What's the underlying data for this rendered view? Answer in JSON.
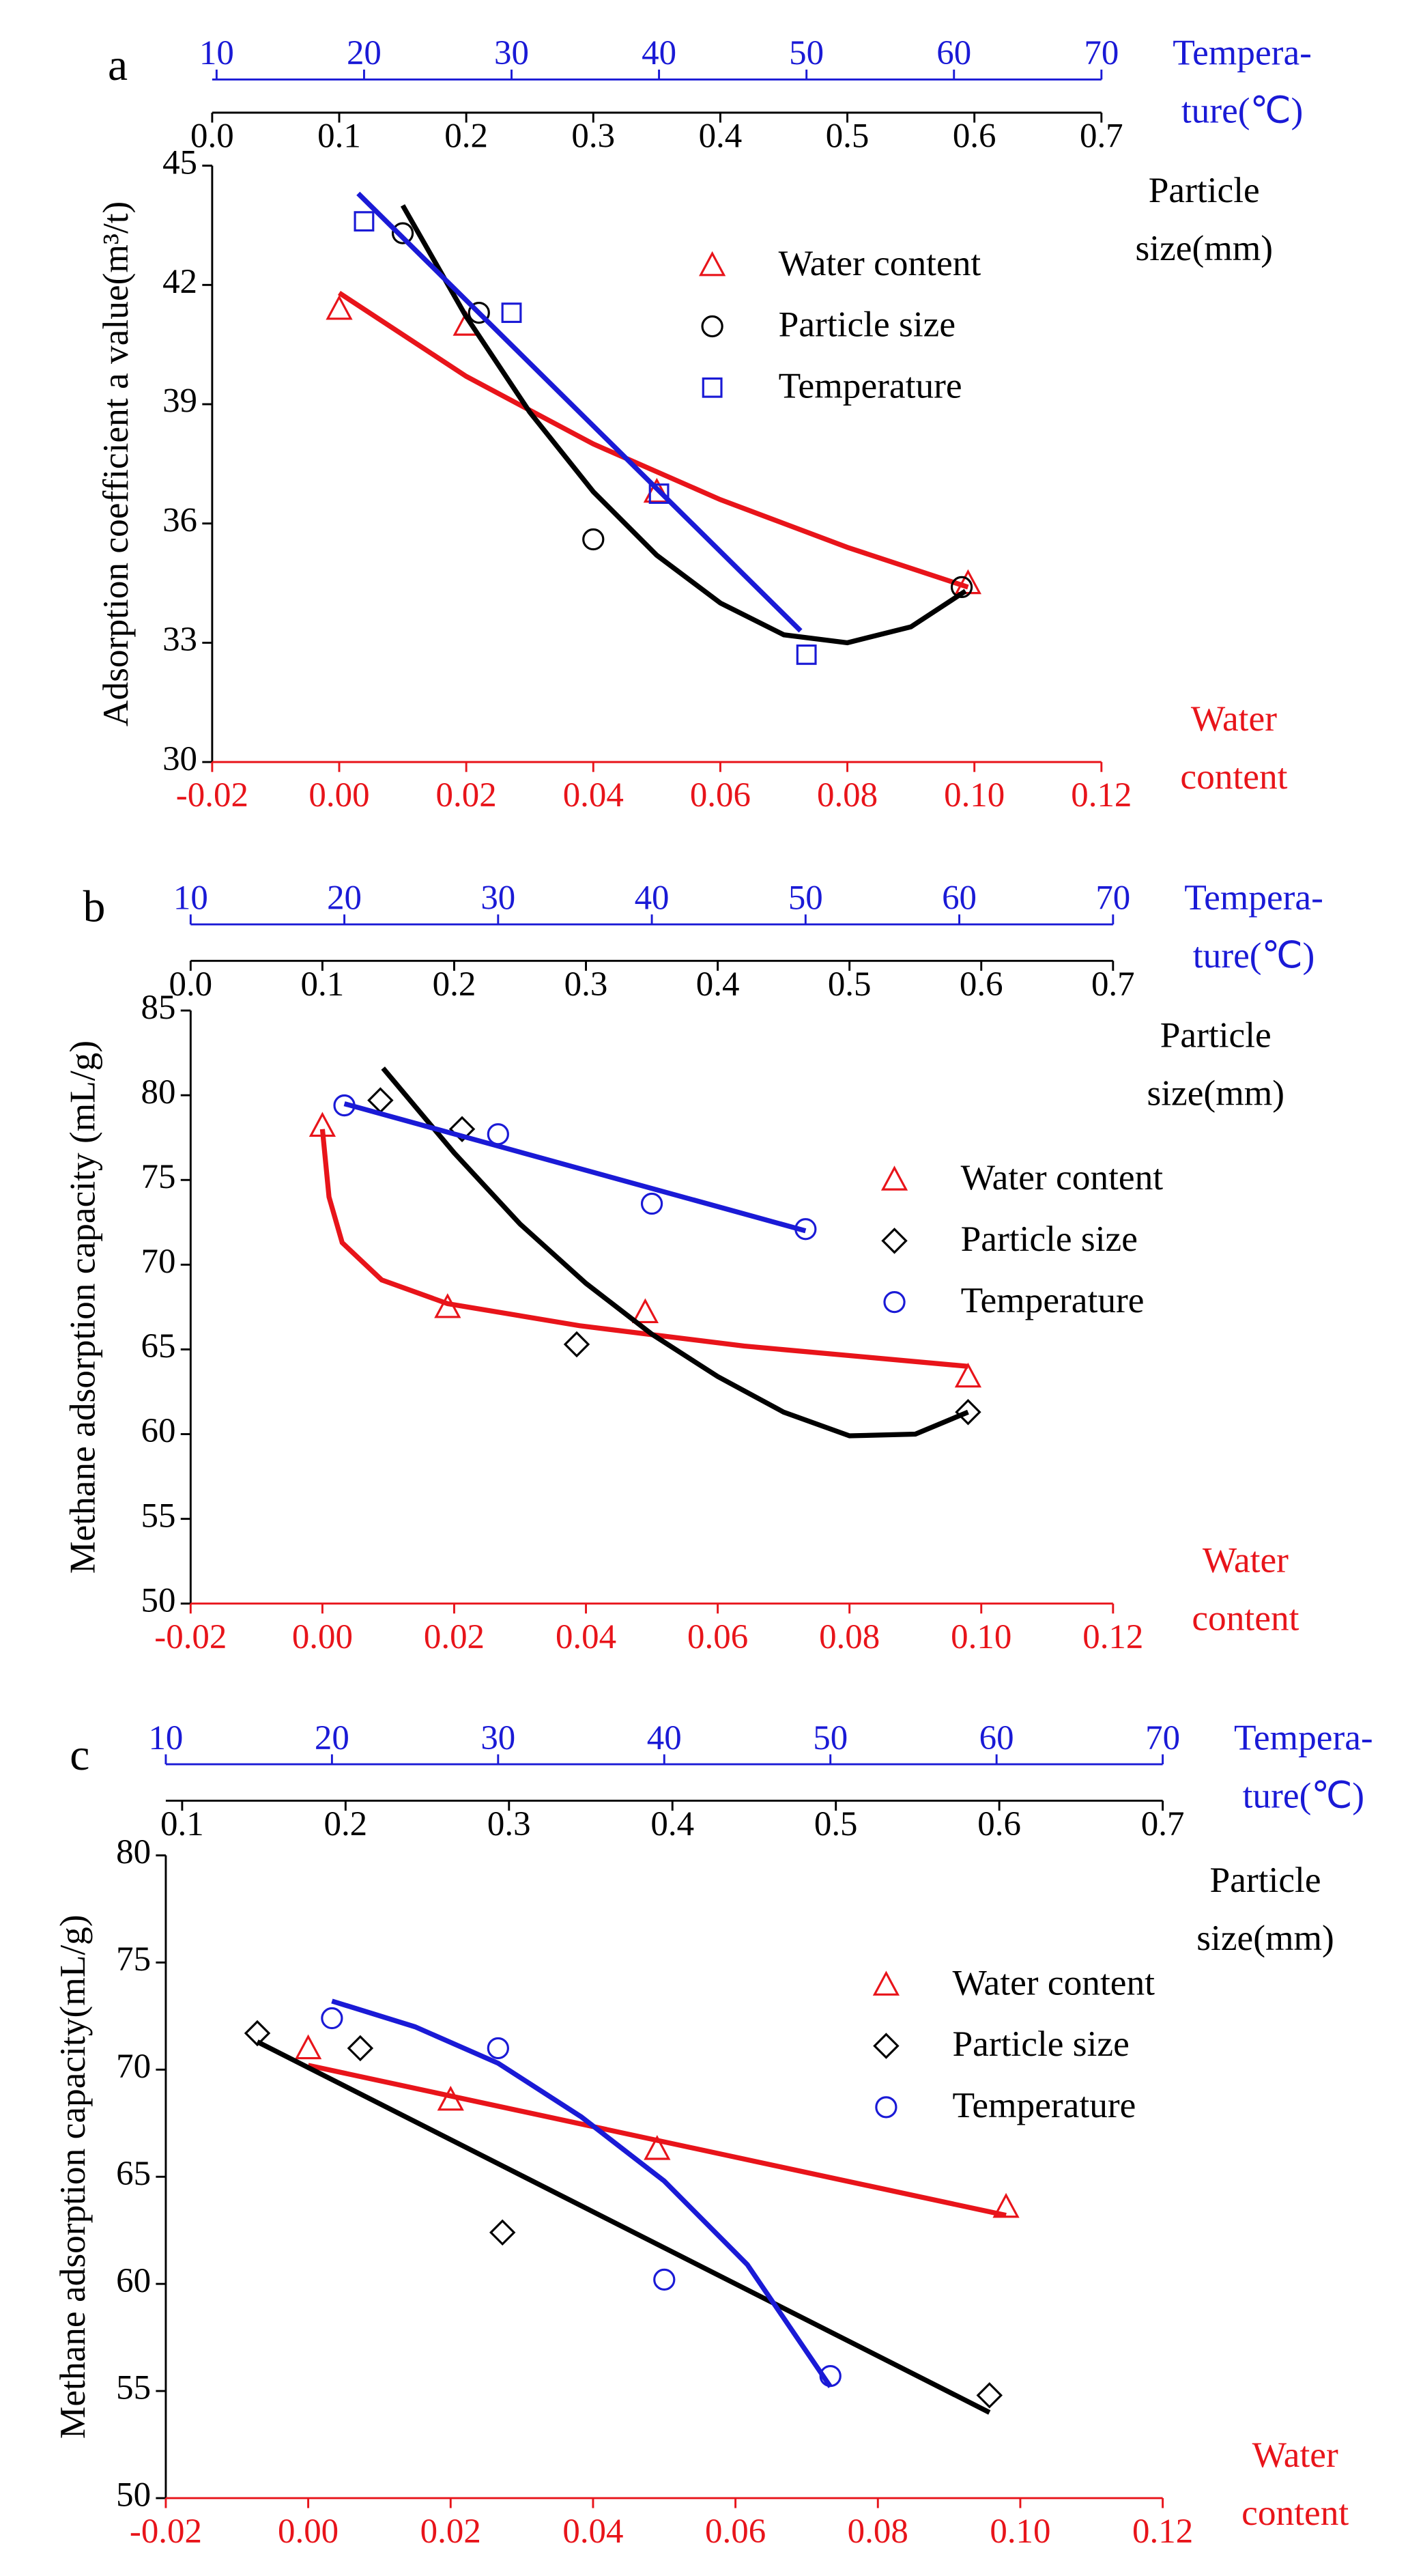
{
  "chart_data": [
    {
      "type": "scatter",
      "label": "a",
      "ylabel": "Adsorption coefficient a value(m³/t)",
      "ylim": [
        30,
        45
      ],
      "yticks": [
        30,
        33,
        36,
        39,
        42,
        45
      ],
      "x_axes": [
        {
          "id": "water",
          "title": [
            "Water",
            "content"
          ],
          "color": "#e8141a",
          "xlim": [
            -0.02,
            0.12
          ],
          "xticks": [
            -0.02,
            {
              "value": 0,
              "label": "0.00"
            },
            0.02,
            0.04,
            0.06,
            0.08,
            {
              "value": 0.1,
              "label": "0.10"
            },
            0.12
          ]
        },
        {
          "id": "particle",
          "title": [
            "Particle",
            "size(mm)"
          ],
          "color": "#000000",
          "xlim": [
            0,
            0.7
          ],
          "xticks": [
            {
              "value": 0,
              "label": "0.0"
            },
            0.1,
            0.2,
            0.3,
            0.4,
            0.5,
            0.6,
            0.7
          ]
        },
        {
          "id": "temperature",
          "title": [
            "Tempera-",
            "ture(℃)"
          ],
          "color": "#1a1ad6",
          "xlim": [
            9.7,
            70
          ],
          "xticks": [
            10,
            20,
            30,
            40,
            50,
            60,
            70
          ]
        }
      ],
      "series": [
        {
          "name": "Water content",
          "axis": "water",
          "color": "#e8141a",
          "marker": "triangle",
          "x": [
            0.0,
            0.02,
            0.05,
            0.099
          ],
          "values": [
            41.4,
            41.0,
            36.8,
            34.5
          ],
          "fit": {
            "x": [
              0.0,
              0.02,
              0.04,
              0.06,
              0.08,
              0.099
            ],
            "values": [
              41.8,
              39.7,
              38.0,
              36.6,
              35.4,
              34.4
            ]
          }
        },
        {
          "name": "Particle size",
          "axis": "particle",
          "color": "#000000",
          "marker": "circle",
          "x": [
            0.15,
            0.21,
            0.3,
            0.59
          ],
          "values": [
            43.3,
            41.3,
            35.6,
            34.4
          ],
          "fit": {
            "x": [
              0.15,
              0.2,
              0.25,
              0.3,
              0.35,
              0.4,
              0.45,
              0.5,
              0.55,
              0.593
            ],
            "values": [
              44.0,
              41.2,
              38.8,
              36.8,
              35.2,
              34.0,
              33.2,
              33.0,
              33.4,
              34.3
            ]
          }
        },
        {
          "name": "Temperature",
          "axis": "temperature",
          "color": "#1a1ad6",
          "marker": "square",
          "x": [
            20,
            30,
            40,
            50
          ],
          "values": [
            43.6,
            41.3,
            36.75,
            32.7
          ],
          "fit": {
            "x": [
              19.6,
              49.6
            ],
            "values": [
              44.3,
              33.3
            ]
          }
        }
      ]
    },
    {
      "type": "scatter",
      "label": "b",
      "ylabel": "Methane adsorption capacity (mL/g)",
      "ylim": [
        50,
        85
      ],
      "yticks": [
        50,
        55,
        60,
        65,
        70,
        75,
        80,
        85
      ],
      "x_axes": [
        {
          "id": "water",
          "title": [
            "Water",
            "content"
          ],
          "color": "#e8141a",
          "xlim": [
            -0.02,
            0.12
          ],
          "xticks": [
            -0.02,
            {
              "value": 0,
              "label": "0.00"
            },
            0.02,
            0.04,
            0.06,
            0.08,
            {
              "value": 0.1,
              "label": "0.10"
            },
            0.12
          ]
        },
        {
          "id": "particle",
          "title": [
            "Particle",
            "size(mm)"
          ],
          "color": "#000000",
          "xlim": [
            0,
            0.7
          ],
          "xticks": [
            {
              "value": 0,
              "label": "0.0"
            },
            0.1,
            0.2,
            0.3,
            0.4,
            0.5,
            0.6,
            0.7
          ]
        },
        {
          "id": "temperature",
          "title": [
            "Tempera-",
            "ture(℃)"
          ],
          "color": "#1a1ad6",
          "xlim": [
            10,
            70
          ],
          "xticks": [
            10,
            20,
            30,
            40,
            50,
            60,
            70
          ]
        }
      ],
      "series": [
        {
          "name": "Water content",
          "axis": "water",
          "color": "#e8141a",
          "marker": "triangle",
          "x": [
            0.0,
            0.019,
            0.049,
            0.098
          ],
          "values": [
            78.2,
            67.5,
            67.2,
            63.4
          ],
          "fit": {
            "x": [
              0.0,
              0.001,
              0.003,
              0.009,
              0.019,
              0.039,
              0.064,
              0.098
            ],
            "values": [
              78.0,
              74.0,
              71.3,
              69.1,
              67.7,
              66.4,
              65.2,
              64.0
            ]
          }
        },
        {
          "name": "Particle size",
          "axis": "particle",
          "color": "#000000",
          "marker": "diamond",
          "x": [
            0.144,
            0.206,
            0.293,
            0.59
          ],
          "values": [
            79.7,
            78.0,
            65.3,
            61.3
          ],
          "fit": {
            "x": [
              0.146,
              0.2,
              0.25,
              0.3,
              0.35,
              0.4,
              0.45,
              0.5,
              0.55,
              0.59
            ],
            "values": [
              81.6,
              76.6,
              72.4,
              68.9,
              65.9,
              63.4,
              61.3,
              59.9,
              60.0,
              61.3
            ]
          }
        },
        {
          "name": "Temperature",
          "axis": "temperature",
          "color": "#1a1ad6",
          "marker": "circle",
          "x": [
            20,
            30,
            40,
            50
          ],
          "values": [
            79.4,
            77.7,
            73.6,
            72.1
          ],
          "fit": {
            "x": [
              20,
              50
            ],
            "values": [
              79.5,
              72.0
            ]
          }
        }
      ]
    },
    {
      "type": "scatter",
      "label": "c",
      "ylabel": "Methane adsorption capacity(mL/g)",
      "ylim": [
        50,
        80
      ],
      "yticks": [
        50,
        55,
        60,
        65,
        70,
        75,
        80
      ],
      "x_axes": [
        {
          "id": "water",
          "title": [
            "Water",
            "content"
          ],
          "color": "#e8141a",
          "xlim": [
            -0.02,
            0.12
          ],
          "xticks": [
            -0.02,
            {
              "value": 0,
              "label": "0.00"
            },
            0.02,
            0.04,
            0.06,
            0.08,
            {
              "value": 0.1,
              "label": "0.10"
            },
            0.12
          ]
        },
        {
          "id": "particle",
          "title": [
            "Particle",
            "size(mm)"
          ],
          "color": "#000000",
          "xlim": [
            0.09,
            0.7
          ],
          "xticks": [
            0.1,
            0.2,
            0.3,
            0.4,
            0.5,
            0.6,
            0.7
          ]
        },
        {
          "id": "temperature",
          "title": [
            "Tempera-",
            "ture(℃)"
          ],
          "color": "#1a1ad6",
          "xlim": [
            10,
            70
          ],
          "xticks": [
            10,
            20,
            30,
            40,
            50,
            60,
            70
          ]
        }
      ],
      "series": [
        {
          "name": "Water content",
          "axis": "water",
          "color": "#e8141a",
          "marker": "triangle",
          "x": [
            0.0,
            0.02,
            0.049,
            0.098
          ],
          "values": [
            71.0,
            68.6,
            66.3,
            63.6
          ],
          "fit": {
            "x": [
              0.0,
              0.098
            ],
            "values": [
              70.2,
              63.2
            ]
          }
        },
        {
          "name": "Particle size",
          "axis": "particle",
          "color": "#000000",
          "marker": "diamond",
          "x": [
            0.146,
            0.209,
            0.296,
            0.594
          ],
          "values": [
            71.7,
            71.0,
            62.4,
            54.8
          ],
          "fit": {
            "x": [
              0.146,
              0.594
            ],
            "values": [
              71.3,
              54.0
            ]
          }
        },
        {
          "name": "Temperature",
          "axis": "temperature",
          "color": "#1a1ad6",
          "marker": "circle",
          "x": [
            20,
            30,
            40,
            50
          ],
          "values": [
            72.4,
            71.0,
            60.2,
            55.7
          ],
          "fit": {
            "x": [
              20,
              25,
              30,
              35,
              40,
              45,
              50
            ],
            "values": [
              73.2,
              72.0,
              70.3,
              67.8,
              64.8,
              60.9,
              55.2
            ]
          }
        }
      ]
    }
  ]
}
